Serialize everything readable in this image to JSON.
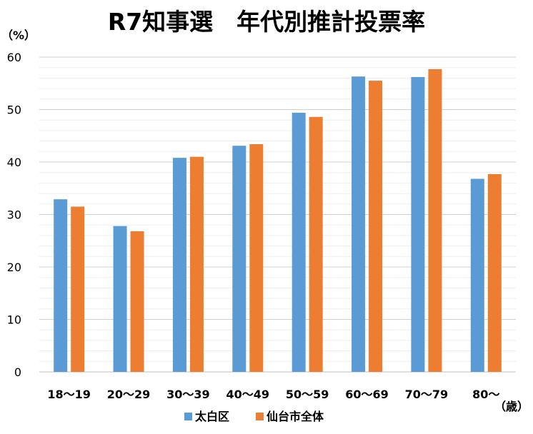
{
  "chart_data": {
    "type": "bar",
    "title": "R7知事選　年代別推計投票率",
    "ylabel": "（%）",
    "xlabel": "（歳）",
    "categories": [
      "18～19",
      "20～29",
      "30～39",
      "40～49",
      "50～59",
      "60～69",
      "70～79",
      "80～"
    ],
    "ylim": [
      0,
      60
    ],
    "yticks": [
      0,
      10,
      20,
      30,
      40,
      50,
      60
    ],
    "grid": true,
    "legend_position": "bottom",
    "series": [
      {
        "name": "太白区",
        "color": "#5B9BD5",
        "values": [
          32.9,
          27.8,
          40.8,
          43.1,
          49.4,
          56.3,
          56.2,
          36.8
        ]
      },
      {
        "name": "仙台市全体",
        "color": "#ED7D31",
        "values": [
          31.5,
          26.8,
          41.0,
          43.4,
          48.6,
          55.5,
          57.7,
          37.7
        ]
      }
    ]
  }
}
